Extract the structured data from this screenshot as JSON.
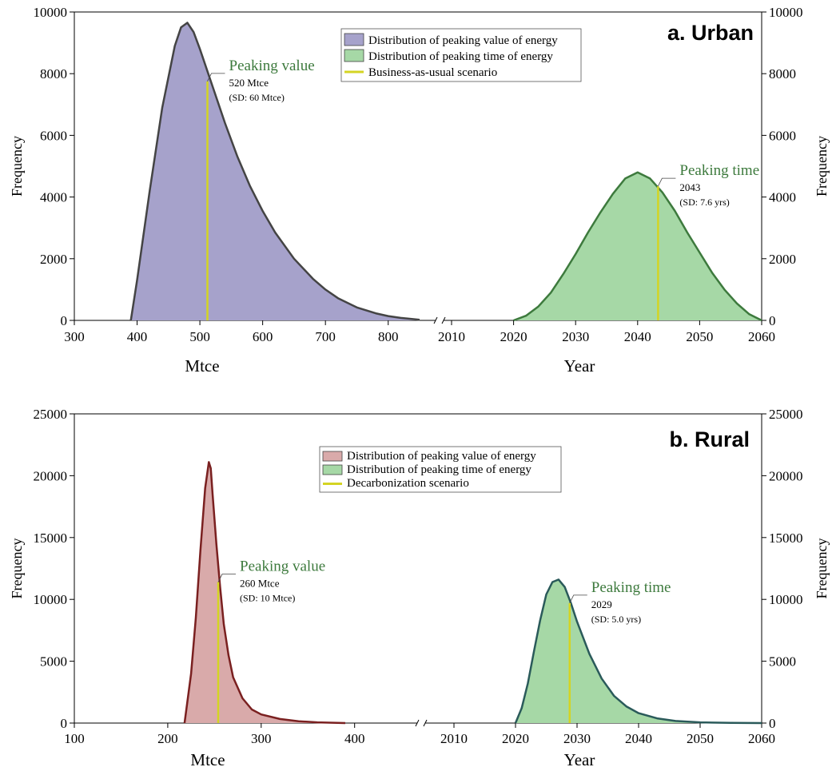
{
  "chart_data": [
    {
      "type": "area",
      "panel_title": "a. Urban",
      "ylabel_left": "Frequency",
      "ylabel_right": "Frequency",
      "ylim": [
        0,
        10000
      ],
      "yticks": [
        0,
        2000,
        4000,
        6000,
        8000,
        10000
      ],
      "value_axis": {
        "xlabel": "Mtce",
        "xlim": [
          300,
          850
        ],
        "xticks": [
          300,
          400,
          500,
          600,
          700,
          800
        ],
        "series": {
          "name": "Distribution of peaking value of energy",
          "color": "#a6a2cb",
          "line_color": "#444444",
          "x": [
            390,
            400,
            420,
            440,
            460,
            470,
            480,
            490,
            500,
            520,
            540,
            560,
            580,
            600,
            620,
            650,
            680,
            700,
            720,
            750,
            780,
            800,
            820,
            850
          ],
          "y": [
            0,
            1300,
            4200,
            6900,
            8900,
            9500,
            9650,
            9350,
            8800,
            7600,
            6400,
            5300,
            4350,
            3550,
            2850,
            2000,
            1350,
            1000,
            720,
            420,
            230,
            140,
            80,
            20
          ]
        },
        "marker": {
          "x": 512,
          "y": 7750
        },
        "annotation": {
          "title": "Peaking value",
          "value": "520 Mtce",
          "sd": "(SD: 60 Mtce)"
        }
      },
      "time_axis": {
        "xlabel": "Year",
        "xlim": [
          2010,
          2060
        ],
        "xticks": [
          2010,
          2020,
          2030,
          2040,
          2050,
          2060
        ],
        "series": {
          "name": "Distribution of peaking time of energy",
          "color": "#a6d8a6",
          "line_color": "#3d7a3d",
          "x": [
            2020,
            2022,
            2024,
            2026,
            2028,
            2030,
            2032,
            2034,
            2036,
            2038,
            2040,
            2042,
            2044,
            2046,
            2048,
            2050,
            2052,
            2054,
            2056,
            2058,
            2060
          ],
          "y": [
            0,
            150,
            450,
            900,
            1500,
            2150,
            2850,
            3500,
            4100,
            4600,
            4800,
            4600,
            4150,
            3550,
            2850,
            2200,
            1550,
            1000,
            550,
            200,
            0
          ]
        },
        "marker": {
          "x": 2043.3,
          "y": 4350
        },
        "annotation": {
          "title": "Peaking time",
          "value": "2043",
          "sd": "(SD: 7.6 yrs)"
        }
      },
      "legend": [
        {
          "label": "Distribution of peaking value of energy",
          "color": "#a6a2cb"
        },
        {
          "label": "Distribution of peaking time of energy",
          "color": "#a6d8a6"
        },
        {
          "label": "Business-as-usual scenario",
          "color": "#d4d423"
        }
      ]
    },
    {
      "type": "area",
      "panel_title": "b. Rural",
      "ylabel_left": "Frequency",
      "ylabel_right": "Frequency",
      "ylim": [
        0,
        25000
      ],
      "yticks": [
        0,
        5000,
        10000,
        15000,
        20000,
        25000
      ],
      "value_axis": {
        "xlabel": "Mtce",
        "xlim": [
          100,
          390
        ],
        "xticks": [
          100,
          200,
          300,
          400
        ],
        "series": {
          "name": "Distribution of peaking value of energy",
          "color": "#d9aaaa",
          "line_color": "#7a2020",
          "x": [
            218,
            225,
            230,
            235,
            240,
            244,
            246,
            248,
            252,
            256,
            260,
            265,
            270,
            280,
            290,
            300,
            320,
            340,
            360,
            390
          ],
          "y": [
            0,
            4000,
            8500,
            14000,
            19000,
            21100,
            20600,
            18500,
            14500,
            11000,
            8000,
            5500,
            3700,
            2000,
            1100,
            700,
            330,
            150,
            60,
            0
          ]
        },
        "marker": {
          "x": 254,
          "y": 11400
        },
        "annotation": {
          "title": "Peaking value",
          "value": "260 Mtce",
          "sd": "(SD: 10 Mtce)"
        }
      },
      "time_axis": {
        "xlabel": "Year",
        "xlim": [
          2010,
          2060
        ],
        "xticks": [
          2010,
          2020,
          2030,
          2040,
          2050,
          2060
        ],
        "series": {
          "name": "Distribution of peaking time of energy",
          "color": "#a6d8a6",
          "line_color": "#2a5a5a",
          "x": [
            2020,
            2021,
            2022,
            2023,
            2024,
            2025,
            2026,
            2027,
            2028,
            2029,
            2030,
            2032,
            2034,
            2036,
            2038,
            2040,
            2043,
            2046,
            2050,
            2055,
            2060
          ],
          "y": [
            0,
            1200,
            3200,
            5800,
            8300,
            10400,
            11400,
            11600,
            11000,
            9700,
            8200,
            5600,
            3600,
            2200,
            1350,
            800,
            380,
            170,
            60,
            10,
            0
          ]
        },
        "marker": {
          "x": 2028.8,
          "y": 9700
        },
        "annotation": {
          "title": "Peaking time",
          "value": "2029",
          "sd": "(SD: 5.0 yrs)"
        }
      },
      "legend": [
        {
          "label": "Distribution of peaking value of energy",
          "color": "#d9aaaa"
        },
        {
          "label": "Distribution of peaking time of energy",
          "color": "#a6d8a6"
        },
        {
          "label": "Decarbonization scenario",
          "color": "#d4d423"
        }
      ]
    }
  ]
}
